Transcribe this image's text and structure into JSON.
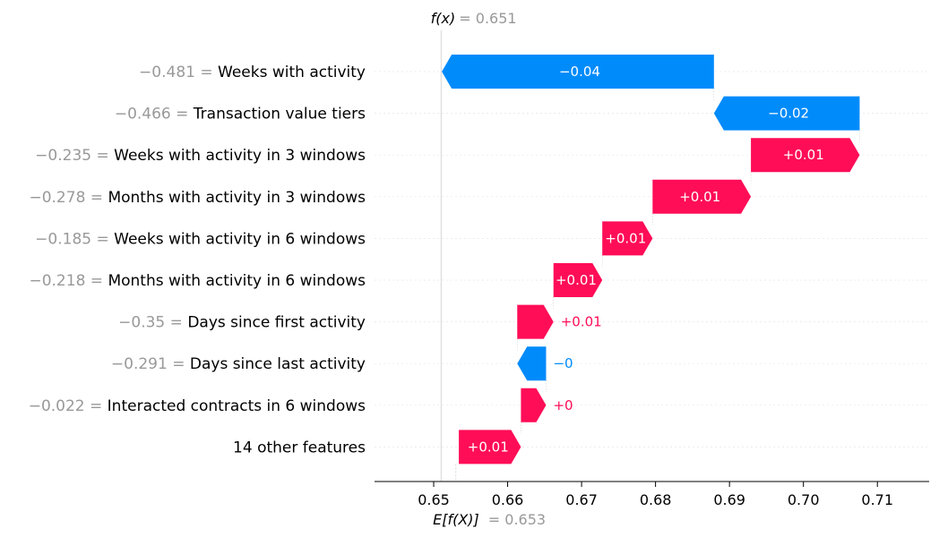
{
  "chart_data": {
    "type": "waterfall",
    "colors": {
      "positive": "#ff0d57",
      "negative": "#008bfb"
    },
    "base_value": 0.653,
    "output_value": 0.651,
    "base_label": {
      "expr": "E[f(X)]",
      "value": "= 0.653"
    },
    "output_label": {
      "expr": "f(x)",
      "value": "= 0.651"
    },
    "xlim": [
      0.642,
      0.717
    ],
    "xticks": [
      0.65,
      0.66,
      0.67,
      0.68,
      0.69,
      0.7,
      0.71
    ],
    "xtick_labels": [
      "0.65",
      "0.66",
      "0.67",
      "0.68",
      "0.69",
      "0.70",
      "0.71"
    ],
    "features": [
      {
        "value_text": "−0.481 =",
        "name": "Weeks with activity",
        "start": 0.6879,
        "end": 0.6511,
        "label": "−0.04"
      },
      {
        "value_text": "−0.466 =",
        "name": "Transaction value tiers",
        "start": 0.7076,
        "end": 0.6879,
        "label": "−0.02"
      },
      {
        "value_text": "−0.235 =",
        "name": "Weeks with activity in 3 windows",
        "start": 0.6929,
        "end": 0.7076,
        "label": "+0.01"
      },
      {
        "value_text": "−0.278 =",
        "name": "Months with activity in 3 windows",
        "start": 0.6796,
        "end": 0.6929,
        "label": "+0.01"
      },
      {
        "value_text": "−0.185 =",
        "name": "Weeks with activity in 6 windows",
        "start": 0.6728,
        "end": 0.6796,
        "label": "+0.01"
      },
      {
        "value_text": "−0.218 =",
        "name": "Months with activity in 6 windows",
        "start": 0.6662,
        "end": 0.6728,
        "label": "+0.01"
      },
      {
        "value_text": "−0.35 =",
        "name": "Days since first activity",
        "start": 0.6613,
        "end": 0.6662,
        "label": "+0.01"
      },
      {
        "value_text": "−0.291 =",
        "name": "Days since last activity",
        "start": 0.6652,
        "end": 0.6613,
        "label": "−0"
      },
      {
        "value_text": "−0.022 =",
        "name": "Interacted contracts in 6 windows",
        "start": 0.6618,
        "end": 0.6652,
        "label": "+0"
      },
      {
        "value_text": "",
        "name": "14 other features",
        "start": 0.6534,
        "end": 0.6618,
        "label": "+0.01"
      }
    ]
  }
}
